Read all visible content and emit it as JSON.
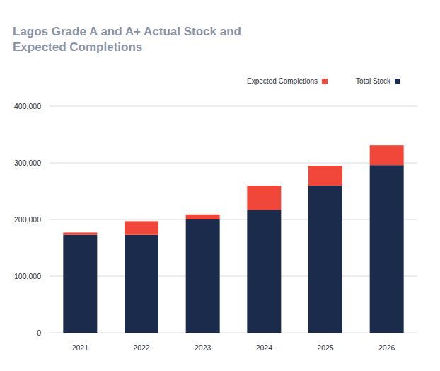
{
  "chart_data": {
    "type": "bar",
    "title": "Lagos Grade A and A+ Actual Stock and Expected Completions",
    "categories": [
      "2021",
      "2022",
      "2023",
      "2024",
      "2025",
      "2026"
    ],
    "series": [
      {
        "name": "Total Stock",
        "color": "#1b2b4b",
        "values": [
          173000,
          173000,
          200000,
          217000,
          260000,
          296000
        ]
      },
      {
        "name": "Expected Completions",
        "color": "#f0473a",
        "values": [
          4000,
          24000,
          9000,
          43000,
          35000,
          35000
        ]
      }
    ],
    "stacked": true,
    "ylim": [
      0,
      400000
    ],
    "yticks": [
      0,
      {
        "value": 100000,
        "label": "100,000"
      },
      {
        "value": 200000,
        "label": "200,000"
      },
      {
        "value": 300000,
        "label": "300,000"
      },
      {
        "value": 400000,
        "label": "400,000"
      }
    ],
    "grid": true,
    "legend": "top-right"
  }
}
